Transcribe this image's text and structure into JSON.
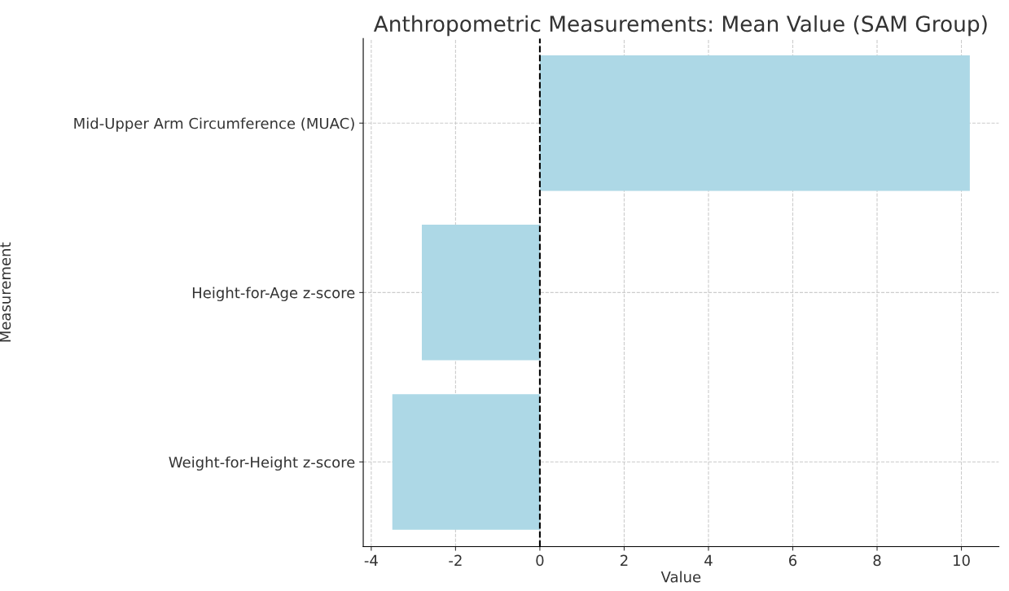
{
  "chart_data": {
    "type": "bar",
    "orientation": "horizontal",
    "title": "Anthropometric Measurements: Mean Value (SAM Group)",
    "xlabel": "Value",
    "ylabel": "Measurement",
    "categories": [
      "Mid-Upper Arm Circumference (MUAC)",
      "Height-for-Age z-score",
      "Weight-for-Height z-score"
    ],
    "values": [
      10.2,
      -2.8,
      -3.5
    ],
    "color": "#add8e6",
    "xlim": [
      -4.19,
      10.89
    ],
    "xticks": [
      -4,
      -2,
      0,
      2,
      4,
      6,
      8,
      10
    ],
    "grid": true,
    "ref_lines": [
      {
        "axis": "x",
        "value": 0,
        "color": "#000000",
        "line_style": "dashed"
      }
    ]
  }
}
